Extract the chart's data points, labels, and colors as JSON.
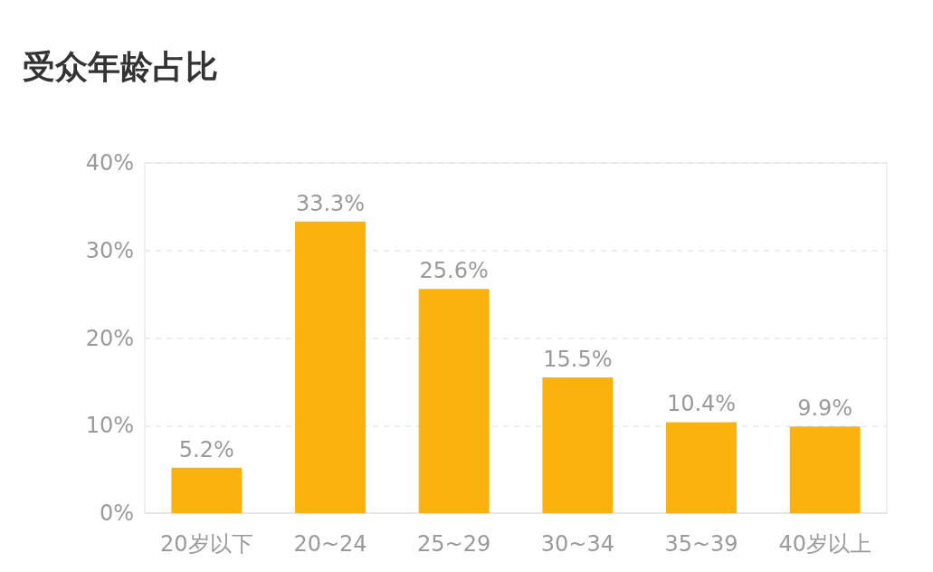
{
  "chart_data": {
    "type": "bar",
    "title": "受众年龄占比",
    "categories": [
      "20岁以下",
      "20~24",
      "25~29",
      "30~34",
      "35~39",
      "40岁以上"
    ],
    "values": [
      5.2,
      33.3,
      25.6,
      15.5,
      10.4,
      9.9
    ],
    "value_labels": [
      "5.2%",
      "33.3%",
      "25.6%",
      "15.5%",
      "10.4%",
      "9.9%"
    ],
    "color": "#fbb20f",
    "ylim": [
      0,
      40
    ],
    "yticks": [
      {
        "value": 0,
        "label": "0%"
      },
      {
        "value": 10,
        "label": "10%"
      },
      {
        "value": 20,
        "label": "20%"
      },
      {
        "value": 30,
        "label": "30%"
      },
      {
        "value": 40,
        "label": "40%"
      }
    ],
    "grid": "y"
  }
}
